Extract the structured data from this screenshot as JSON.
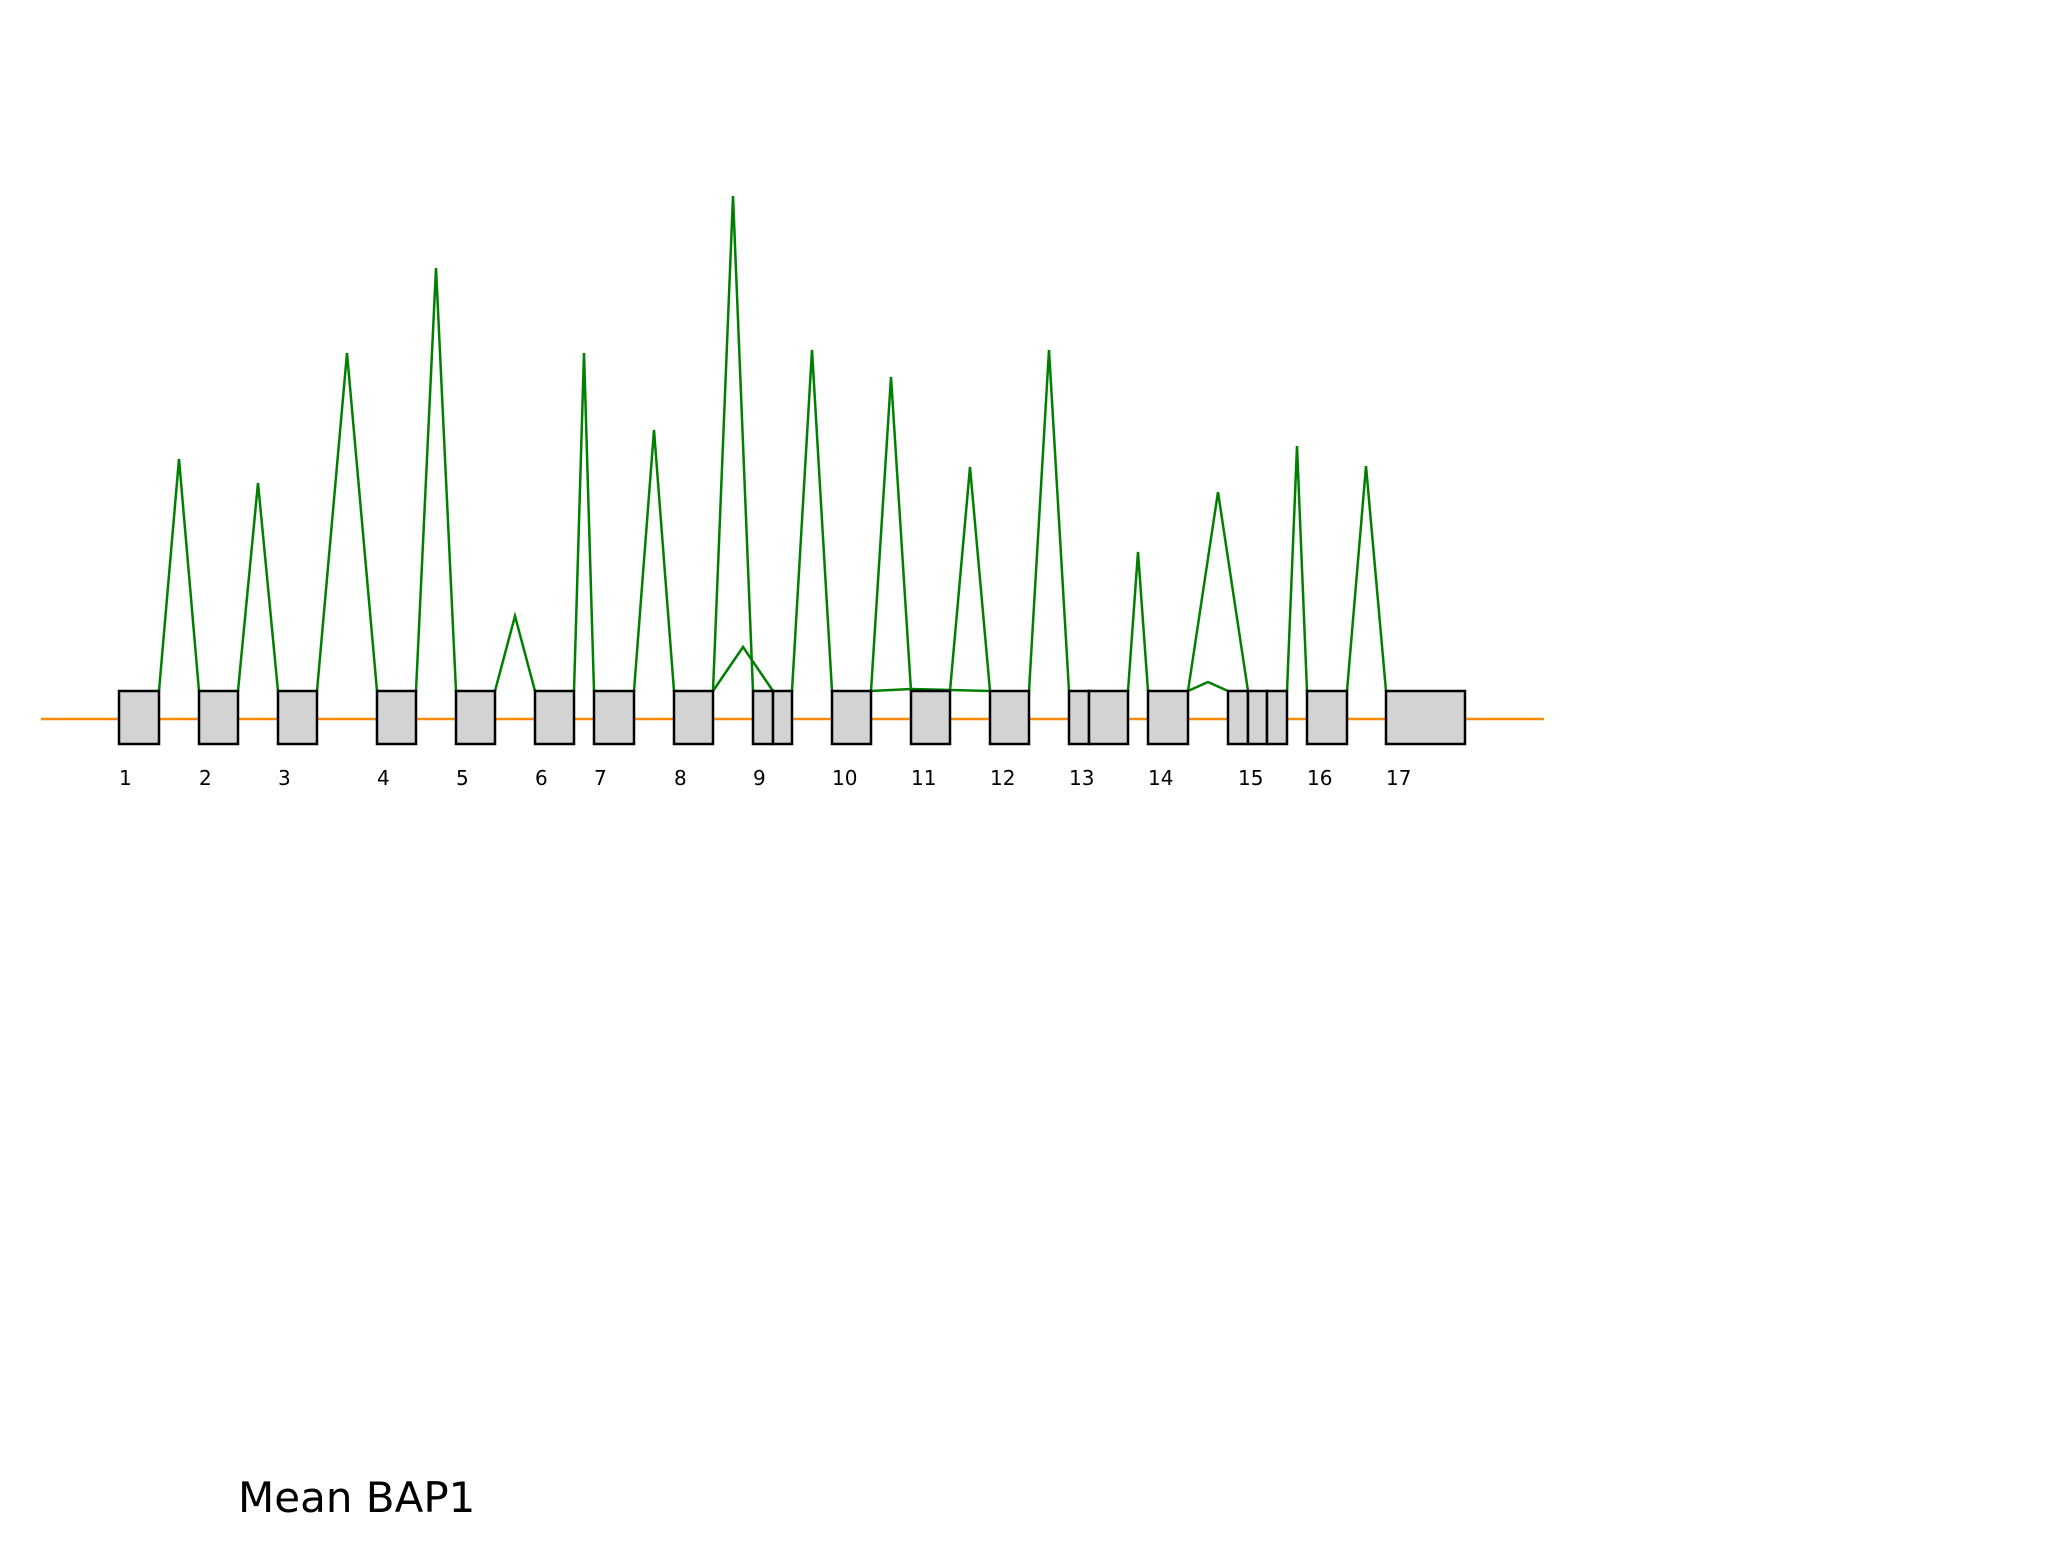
{
  "title": "Mean BAP1",
  "colors": {
    "intron_line": "#ff8c00",
    "junction_arc": "#008000",
    "exon_fill": "#d3d3d3",
    "exon_stroke": "#000000"
  },
  "exons": [
    {
      "label": "1"
    },
    {
      "label": "2"
    },
    {
      "label": "3"
    },
    {
      "label": "4"
    },
    {
      "label": "5"
    },
    {
      "label": "6"
    },
    {
      "label": "7"
    },
    {
      "label": "8"
    },
    {
      "label": "9"
    },
    {
      "label": "10"
    },
    {
      "label": "11"
    },
    {
      "label": "12"
    },
    {
      "label": "13"
    },
    {
      "label": "14"
    },
    {
      "label": "15"
    },
    {
      "label": "16"
    },
    {
      "label": "17"
    }
  ]
}
